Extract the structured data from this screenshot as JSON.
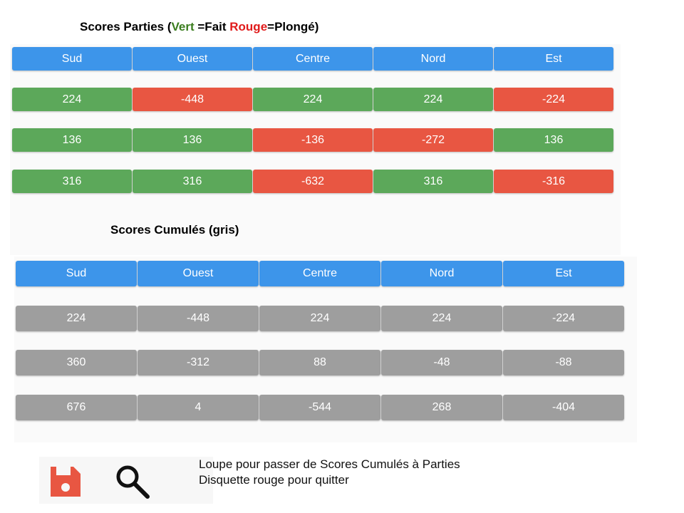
{
  "legend": {
    "prefix": "Scores Parties (",
    "green_word": "Vert",
    "mid": " =Fait ",
    "red_word": "Rouge",
    "suffix": "=Plongé)"
  },
  "cumul_title": "Scores Cumulés (gris)",
  "columns": [
    "Sud",
    "Ouest",
    "Centre",
    "Nord",
    "Est"
  ],
  "parties_rows": [
    [
      {
        "value": "224",
        "status": "green"
      },
      {
        "value": "-448",
        "status": "red"
      },
      {
        "value": "224",
        "status": "green"
      },
      {
        "value": "224",
        "status": "green"
      },
      {
        "value": "-224",
        "status": "red"
      }
    ],
    [
      {
        "value": "136",
        "status": "green"
      },
      {
        "value": "136",
        "status": "green"
      },
      {
        "value": "-136",
        "status": "red"
      },
      {
        "value": "-272",
        "status": "red"
      },
      {
        "value": "136",
        "status": "green"
      }
    ],
    [
      {
        "value": "316",
        "status": "green"
      },
      {
        "value": "316",
        "status": "green"
      },
      {
        "value": "-632",
        "status": "red"
      },
      {
        "value": "316",
        "status": "green"
      },
      {
        "value": "-316",
        "status": "red"
      }
    ]
  ],
  "cumul_rows": [
    [
      "224",
      "-448",
      "224",
      "224",
      "-224"
    ],
    [
      "360",
      "-312",
      "88",
      "-48",
      "-88"
    ],
    [
      "676",
      "4",
      "-544",
      "268",
      "-404"
    ]
  ],
  "toolbar": {
    "save_icon": "floppy-disk-icon",
    "search_icon": "magnifier-icon"
  },
  "notes": [
    "Loupe pour passer de Scores Cumulés à Parties",
    "Disquette rouge pour quitter"
  ],
  "colors": {
    "header_blue": "#3d95ea",
    "done_green": "#5ca85a",
    "failed_red": "#e85642",
    "cumul_gray": "#9e9e9e",
    "save_icon_red": "#e85642"
  }
}
